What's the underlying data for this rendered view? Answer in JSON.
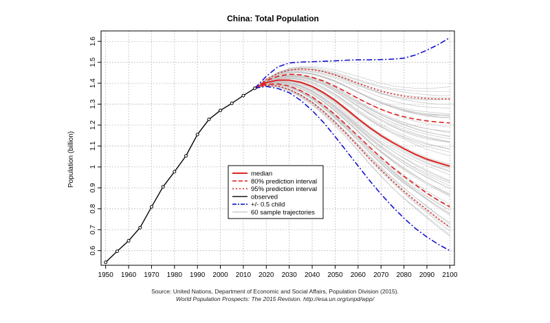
{
  "chart_data": {
    "type": "line",
    "title": "China: Total Population",
    "ylabel": "Population (billion)",
    "xlabel": "",
    "xlim": [
      1948,
      2102
    ],
    "ylim": [
      0.53,
      1.65
    ],
    "xticks": [
      "1950",
      "1960",
      "1970",
      "1980",
      "1990",
      "2000",
      "2010",
      "2020",
      "2030",
      "2040",
      "2050",
      "2060",
      "2070",
      "2080",
      "2090",
      "2100"
    ],
    "yticks": [
      "0.6",
      "0.7",
      "0.8",
      "0.9",
      "1",
      "1.1",
      "1.2",
      "1.3",
      "1.4",
      "1.5",
      "1.6"
    ],
    "grid": true,
    "legend_position": "center",
    "legend": [
      {
        "label": "median",
        "color": "#e02020",
        "style": "solid"
      },
      {
        "label": "80% prediction interval",
        "color": "#e02020",
        "style": "dashed"
      },
      {
        "label": "95% prediction interval",
        "color": "#e02020",
        "style": "dotted"
      },
      {
        "label": "observed",
        "color": "#000000",
        "style": "solid"
      },
      {
        "label": "+/- 0.5 child",
        "color": "#1010d0",
        "style": "dashdot"
      },
      {
        "label": "60 sample trajectories",
        "color": "#b8b8b8",
        "style": "thin"
      }
    ],
    "series": [
      {
        "name": "observed",
        "color": "#000000",
        "x": [
          1950,
          1955,
          1960,
          1965,
          1970,
          1975,
          1980,
          1985,
          1990,
          1995,
          2000,
          2005,
          2010,
          2015
        ],
        "y": [
          0.544,
          0.597,
          0.647,
          0.71,
          0.809,
          0.905,
          0.977,
          1.053,
          1.155,
          1.227,
          1.27,
          1.304,
          1.341,
          1.376
        ]
      },
      {
        "name": "median",
        "color": "#e02020",
        "x": [
          2015,
          2020,
          2025,
          2030,
          2035,
          2040,
          2045,
          2050,
          2055,
          2060,
          2065,
          2070,
          2075,
          2080,
          2085,
          2090,
          2095,
          2100
        ],
        "y": [
          1.376,
          1.403,
          1.415,
          1.415,
          1.405,
          1.385,
          1.355,
          1.318,
          1.275,
          1.23,
          1.188,
          1.15,
          1.117,
          1.087,
          1.06,
          1.037,
          1.02,
          1.004
        ]
      },
      {
        "name": "80% upper",
        "color": "#e02020",
        "x": [
          2015,
          2020,
          2025,
          2030,
          2035,
          2040,
          2045,
          2050,
          2055,
          2060,
          2065,
          2070,
          2075,
          2080,
          2085,
          2090,
          2095,
          2100
        ],
        "y": [
          1.376,
          1.412,
          1.433,
          1.443,
          1.44,
          1.428,
          1.41,
          1.385,
          1.357,
          1.327,
          1.3,
          1.275,
          1.255,
          1.24,
          1.228,
          1.22,
          1.214,
          1.21
        ]
      },
      {
        "name": "80% lower",
        "color": "#e02020",
        "x": [
          2015,
          2020,
          2025,
          2030,
          2035,
          2040,
          2045,
          2050,
          2055,
          2060,
          2065,
          2070,
          2075,
          2080,
          2085,
          2090,
          2095,
          2100
        ],
        "y": [
          1.376,
          1.395,
          1.397,
          1.387,
          1.365,
          1.335,
          1.295,
          1.25,
          1.2,
          1.148,
          1.095,
          1.045,
          0.998,
          0.955,
          0.915,
          0.875,
          0.84,
          0.81
        ]
      },
      {
        "name": "95% upper",
        "color": "#e02020",
        "x": [
          2015,
          2020,
          2025,
          2030,
          2035,
          2040,
          2045,
          2050,
          2055,
          2060,
          2065,
          2070,
          2075,
          2080,
          2085,
          2090,
          2095,
          2100
        ],
        "y": [
          1.376,
          1.418,
          1.447,
          1.463,
          1.468,
          1.465,
          1.455,
          1.44,
          1.42,
          1.4,
          1.38,
          1.362,
          1.348,
          1.338,
          1.331,
          1.327,
          1.325,
          1.325
        ]
      },
      {
        "name": "95% lower",
        "color": "#e02020",
        "x": [
          2015,
          2020,
          2025,
          2030,
          2035,
          2040,
          2045,
          2050,
          2055,
          2060,
          2065,
          2070,
          2075,
          2080,
          2085,
          2090,
          2095,
          2100
        ],
        "y": [
          1.376,
          1.39,
          1.387,
          1.37,
          1.343,
          1.308,
          1.263,
          1.212,
          1.157,
          1.1,
          1.04,
          0.985,
          0.932,
          0.883,
          0.838,
          0.795,
          0.752,
          0.712
        ]
      },
      {
        "name": "+0.5 child",
        "color": "#1010d0",
        "x": [
          2015,
          2020,
          2025,
          2030,
          2035,
          2040,
          2045,
          2050,
          2055,
          2060,
          2065,
          2070,
          2075,
          2080,
          2085,
          2090,
          2095,
          2100
        ],
        "y": [
          1.376,
          1.433,
          1.478,
          1.497,
          1.501,
          1.503,
          1.505,
          1.507,
          1.51,
          1.512,
          1.512,
          1.513,
          1.515,
          1.52,
          1.535,
          1.558,
          1.585,
          1.618
        ]
      },
      {
        "name": "-0.5 child",
        "color": "#1010d0",
        "x": [
          2015,
          2020,
          2025,
          2030,
          2035,
          2040,
          2045,
          2050,
          2055,
          2060,
          2065,
          2070,
          2075,
          2080,
          2085,
          2090,
          2095,
          2100
        ],
        "y": [
          1.376,
          1.385,
          1.375,
          1.355,
          1.318,
          1.27,
          1.212,
          1.145,
          1.075,
          1.005,
          0.935,
          0.87,
          0.81,
          0.755,
          0.706,
          0.665,
          0.63,
          0.6
        ]
      }
    ],
    "source_line1": "Source: United Nations, Department of Economic and Social Affairs, Population Division (2015).",
    "source_line2": "World Population Prospects: The 2015 Revision. http://esa.un.org/unpd/wpp/"
  }
}
